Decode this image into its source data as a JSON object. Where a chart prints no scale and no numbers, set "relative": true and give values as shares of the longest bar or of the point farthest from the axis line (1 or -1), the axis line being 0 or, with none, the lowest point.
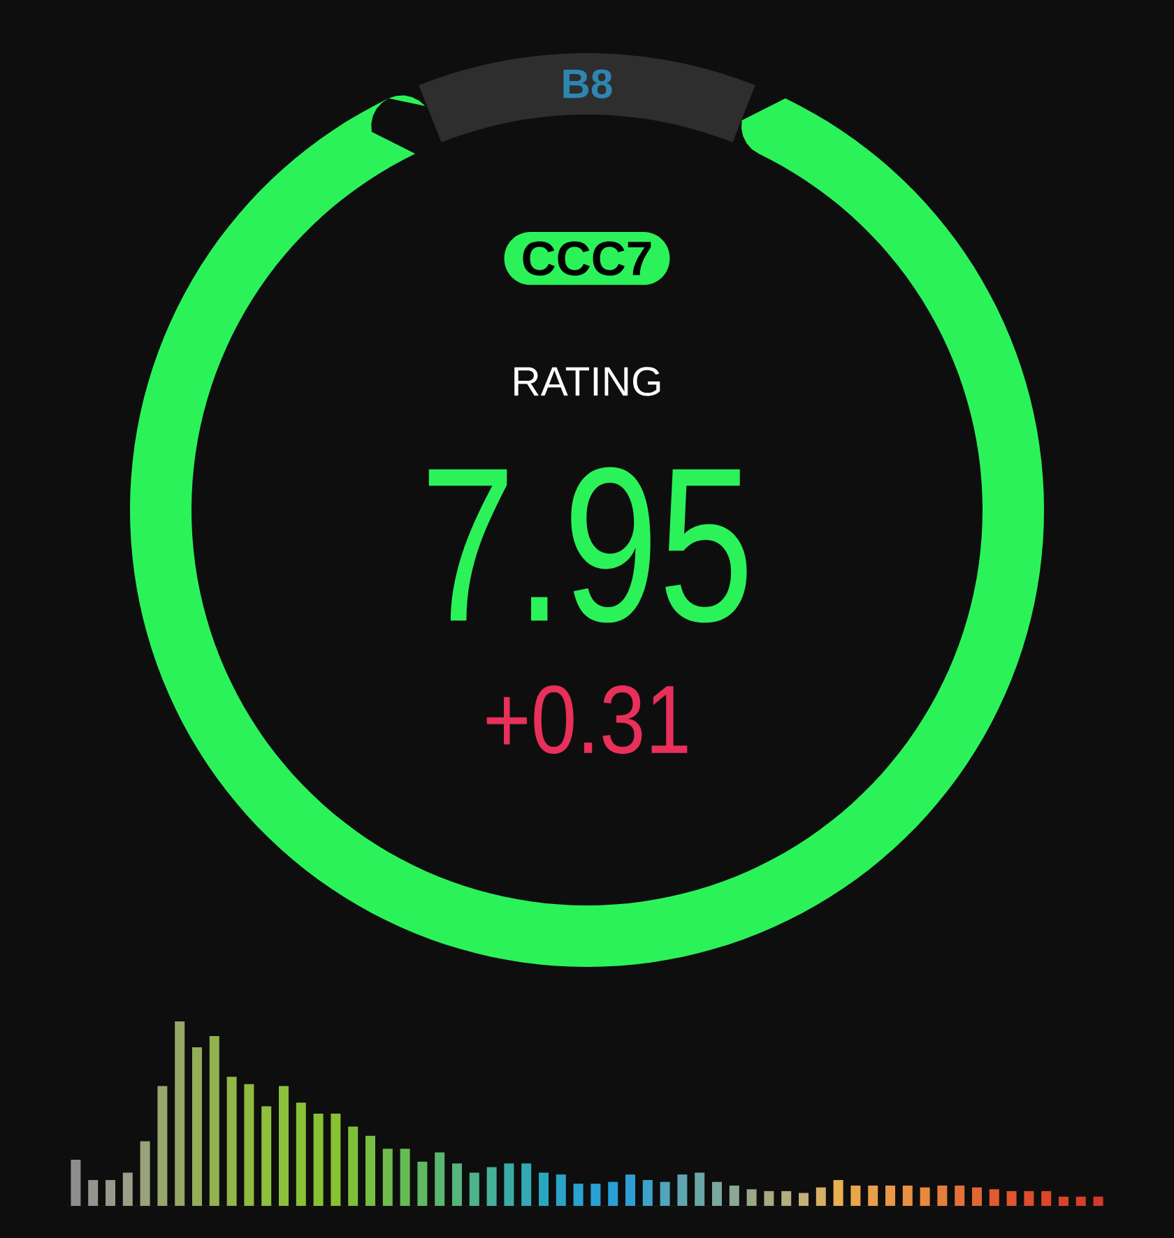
{
  "chart_data": [
    {
      "type": "donut",
      "categories": [
        null,
        "B8"
      ],
      "values": [
        88,
        12
      ],
      "colors": [
        "#2cf25a",
        "#2e2e2e"
      ],
      "annotations": [
        "CCC7",
        "RATING",
        "7.95",
        "+0.31"
      ]
    },
    {
      "type": "bar",
      "relative": true,
      "categories": [
        null,
        null,
        null,
        null,
        null,
        null,
        null,
        null,
        null,
        null,
        null,
        null,
        null,
        null,
        null,
        null,
        null,
        null,
        null,
        null,
        null,
        null,
        null,
        null,
        null,
        null,
        null,
        null,
        null,
        null,
        null,
        null,
        null,
        null,
        null,
        null,
        null,
        null,
        null,
        null,
        null,
        null,
        null,
        null,
        null,
        null,
        null,
        null,
        null,
        null,
        null,
        null,
        null,
        null,
        null,
        null,
        null,
        null,
        null,
        null
      ],
      "values": [
        0.25,
        0.14,
        0.14,
        0.18,
        0.35,
        0.65,
        1,
        0.86,
        0.92,
        0.7,
        0.66,
        0.54,
        0.65,
        0.56,
        0.5,
        0.5,
        0.43,
        0.38,
        0.31,
        0.31,
        0.24,
        0.29,
        0.23,
        0.18,
        0.21,
        0.23,
        0.23,
        0.18,
        0.17,
        0.12,
        0.12,
        0.13,
        0.17,
        0.14,
        0.13,
        0.17,
        0.18,
        0.13,
        0.11,
        0.09,
        0.08,
        0.08,
        0.07,
        0.1,
        0.14,
        0.11,
        0.11,
        0.11,
        0.11,
        0.1,
        0.11,
        0.11,
        0.1,
        0.09,
        0.08,
        0.08,
        0.08,
        0.05,
        0.05,
        0.05
      ],
      "colors": [
        "#8e8e8e",
        "#959590",
        "#98998c",
        "#9a9f88",
        "#99a37a",
        "#97a66e",
        "#95a865",
        "#93ad5a",
        "#92b24f",
        "#91b746",
        "#90bb40",
        "#8fbf3e",
        "#8dc03a",
        "#8ac136",
        "#88c234",
        "#86c232",
        "#7fc03a",
        "#77be43",
        "#6ebc4c",
        "#66bb55",
        "#60b962",
        "#5ab76f",
        "#55b57c",
        "#4fb38a",
        "#46b098",
        "#3cada6",
        "#33aab3",
        "#2aa7c0",
        "#2aa5c8",
        "#2aa3d0",
        "#2aa1d4",
        "#2a9fd8",
        "#2f9fd4",
        "#3fa2c8",
        "#50a4bc",
        "#60a6b0",
        "#6aa8a8",
        "#7ba89e",
        "#8aa894",
        "#9aa888",
        "#a8aa84",
        "#b6ad7e",
        "#c4b078",
        "#d6b064",
        "#e8b050",
        "#e8a64d",
        "#e89f4a",
        "#e89846",
        "#e89142",
        "#e88a3e",
        "#e67e3b",
        "#e47238",
        "#e26634",
        "#e15a31",
        "#e0542e",
        "#dd4e2d",
        "#da482c",
        "#d8442b",
        "#d63f2a",
        "#d43a2a"
      ]
    }
  ]
}
